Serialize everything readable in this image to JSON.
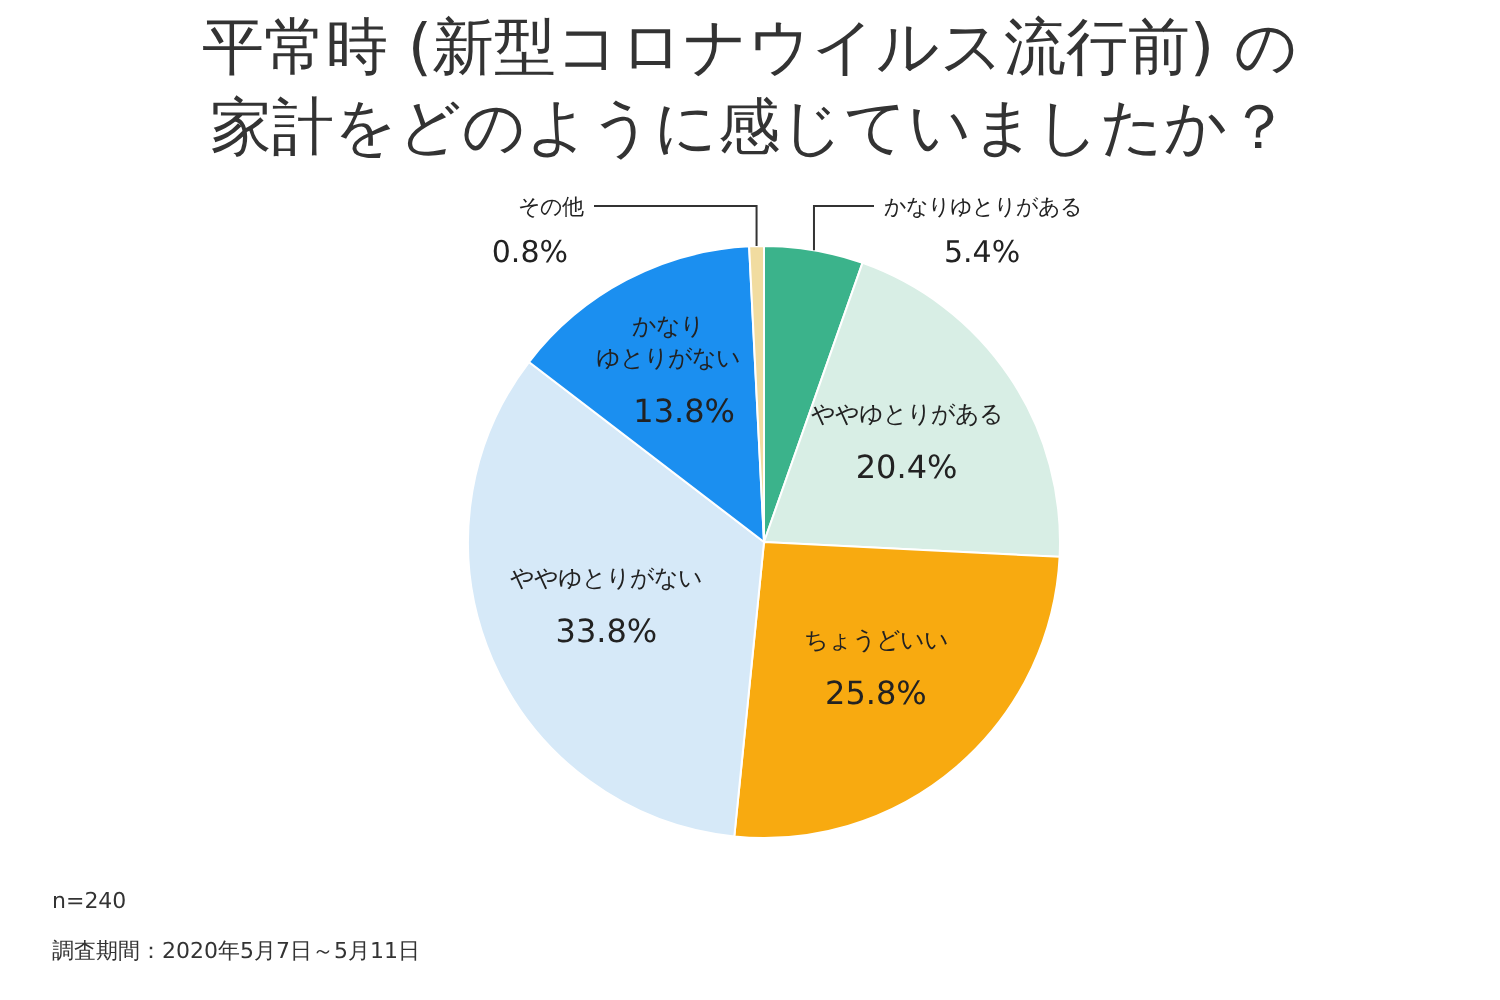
{
  "chart_data": {
    "type": "pie",
    "title": "平常時 (新型コロナウイルス流行前) の家計をどのように感じていましたか？",
    "categories": [
      "かなりゆとりがある",
      "ややゆとりがある",
      "ちょうどいい",
      "ややゆとりがない",
      "かなりゆとりがない",
      "その他"
    ],
    "values": [
      5.4,
      20.4,
      25.8,
      33.8,
      13.8,
      0.8
    ],
    "colors": [
      "#3bb38b",
      "#d8eee5",
      "#f8aa10",
      "#d6e9f8",
      "#1b8ff0",
      "#f1dca0"
    ],
    "value_labels": [
      "5.4%",
      "20.4%",
      "25.8%",
      "33.8%",
      "13.8%",
      "0.8%"
    ],
    "annotations": [
      "n=240",
      "調査期間：2020年5月7日～5月11日"
    ]
  }
}
